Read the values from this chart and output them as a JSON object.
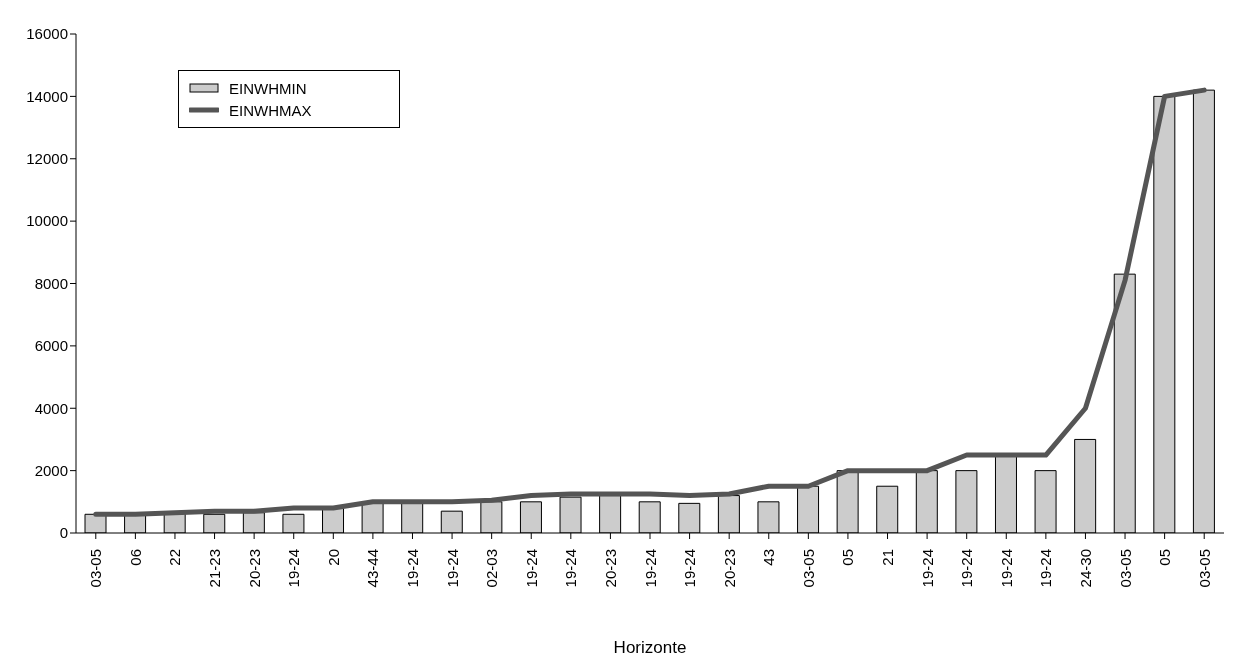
{
  "chart_data": {
    "type": "bar",
    "xlabel": "Horizonte",
    "categories": [
      "03-05",
      "06",
      "22",
      "21-23",
      "20-23",
      "19-24",
      "20",
      "43-44",
      "19-24",
      "19-24",
      "02-03",
      "19-24",
      "19-24",
      "20-23",
      "19-24",
      "19-24",
      "20-23",
      "43",
      "03-05",
      "05",
      "21",
      "19-24",
      "19-24",
      "19-24",
      "19-24",
      "24-30",
      "03-05",
      "05",
      "03-05"
    ],
    "series": [
      {
        "name": "EINWHMIN",
        "color": "#cccccc",
        "values": [
          600,
          600,
          650,
          600,
          650,
          600,
          800,
          1000,
          1000,
          700,
          1000,
          1000,
          1150,
          1200,
          1000,
          950,
          1200,
          1000,
          1500,
          2000,
          1500,
          2000,
          2000,
          2500,
          2000,
          3000,
          8300,
          14000,
          14200
        ]
      },
      {
        "name": "EINWHMAX",
        "type": "line",
        "color": "#555555",
        "values": [
          600,
          600,
          650,
          700,
          700,
          800,
          800,
          1000,
          1000,
          1000,
          1050,
          1200,
          1250,
          1250,
          1250,
          1200,
          1250,
          1500,
          1500,
          2000,
          2000,
          2000,
          2500,
          2500,
          2500,
          4000,
          8100,
          14000,
          14200
        ]
      }
    ],
    "ylim": [
      0,
      16000
    ],
    "yticks": [
      0,
      2000,
      4000,
      6000,
      8000,
      10000,
      12000,
      14000,
      16000
    ],
    "grid": false,
    "legend": "top left",
    "marker": "none",
    "line_style": "solid"
  }
}
